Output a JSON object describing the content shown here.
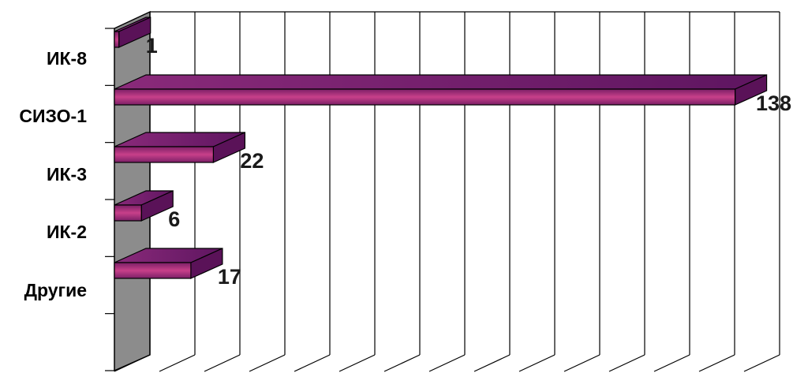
{
  "chart_data": {
    "type": "bar",
    "orientation": "horizontal",
    "style": "3d",
    "categories": [
      "ИК-8",
      "СИЗО-1",
      "ИК-3",
      "ИК-2",
      "Другие"
    ],
    "values": [
      1,
      138,
      22,
      6,
      17
    ],
    "data_labels": [
      "1",
      "138",
      "22",
      "6",
      "17"
    ],
    "title": "",
    "xlabel": "",
    "ylabel": "",
    "xlim": [
      0,
      140
    ],
    "grid": true,
    "legend": "none",
    "colors": {
      "bar_front": "#b8357e",
      "bar_front_dark": "#7a1f66",
      "bar_top": "#6e1a6a",
      "bar_side": "#5a1258",
      "wall": "#8c8c8c",
      "grid": "#000000"
    }
  }
}
